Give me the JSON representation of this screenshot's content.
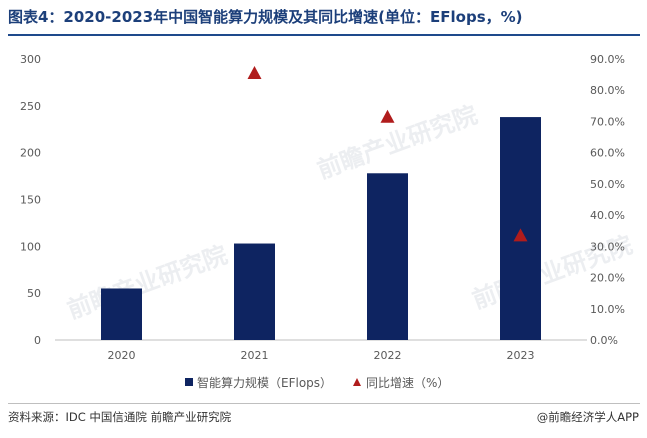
{
  "title": "图表4：2020-2023年中国智能算力规模及其同比增速(单位：EFlops，%)",
  "source": "资料来源：IDC 中国信通院 前瞻产业研究院",
  "brand": "@前瞻经济学人APP",
  "watermark": "前瞻产业研究院",
  "colors": {
    "bar": "#0e2461",
    "marker": "#b01c1c",
    "title": "#1c3f7a"
  },
  "chart_data": {
    "type": "bar",
    "categories": [
      "2020",
      "2021",
      "2022",
      "2023"
    ],
    "series": [
      {
        "name": "智能算力规模（EFlops）",
        "type": "bar",
        "axis": "left",
        "values": [
          55,
          103,
          178,
          238
        ]
      },
      {
        "name": "同比增速（%）",
        "type": "scatter",
        "marker": "triangle",
        "axis": "right",
        "values": [
          null,
          85.5,
          71.5,
          33.5
        ]
      }
    ],
    "y_left": {
      "min": 0,
      "max": 300,
      "ticks": [
        0,
        50,
        100,
        150,
        200,
        250,
        300
      ]
    },
    "y_right": {
      "min": 0,
      "max": 90,
      "ticks": [
        "0.0%",
        "10.0%",
        "20.0%",
        "30.0%",
        "40.0%",
        "50.0%",
        "60.0%",
        "70.0%",
        "80.0%",
        "90.0%"
      ]
    },
    "grid": false,
    "legend_position": "bottom"
  }
}
